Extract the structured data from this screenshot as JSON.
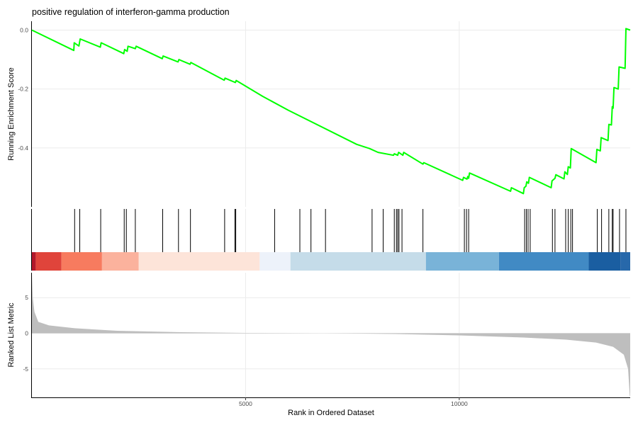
{
  "chart_data": {
    "type": "line",
    "title": "positive regulation of interferon-gamma production",
    "xlabel": "Rank in Ordered Dataset",
    "xlim": [
      0,
      14000
    ],
    "x_ticks": [
      5000,
      10000
    ],
    "x_tick_labels": [
      "5000",
      "10000"
    ],
    "grid": true,
    "color_line": "#00ff00",
    "enrichment": {
      "ylabel": "Running Enrichment Score",
      "ylim": [
        -0.6,
        0.03
      ],
      "y_ticks": [
        0.0,
        -0.2,
        -0.4
      ],
      "y_tick_labels": [
        "0.0",
        "-0.2",
        "-0.4"
      ],
      "points": [
        [
          0,
          0
        ],
        [
          980,
          -0.069
        ],
        [
          990,
          -0.043
        ],
        [
          1100,
          -0.054
        ],
        [
          1130,
          -0.03
        ],
        [
          1600,
          -0.058
        ],
        [
          1620,
          -0.043
        ],
        [
          2150,
          -0.08
        ],
        [
          2170,
          -0.066
        ],
        [
          2230,
          -0.072
        ],
        [
          2250,
          -0.055
        ],
        [
          2420,
          -0.063
        ],
        [
          2440,
          -0.055
        ],
        [
          3050,
          -0.097
        ],
        [
          3070,
          -0.088
        ],
        [
          3420,
          -0.108
        ],
        [
          3440,
          -0.1
        ],
        [
          3700,
          -0.116
        ],
        [
          3720,
          -0.11
        ],
        [
          4500,
          -0.17
        ],
        [
          4520,
          -0.163
        ],
        [
          4760,
          -0.178
        ],
        [
          4780,
          -0.171
        ],
        [
          5400,
          -0.225
        ],
        [
          6000,
          -0.272
        ],
        [
          7600,
          -0.388
        ],
        [
          7900,
          -0.402
        ],
        [
          8100,
          -0.415
        ],
        [
          8460,
          -0.425
        ],
        [
          8480,
          -0.42
        ],
        [
          8560,
          -0.425
        ],
        [
          8580,
          -0.415
        ],
        [
          8680,
          -0.425
        ],
        [
          8700,
          -0.415
        ],
        [
          9150,
          -0.455
        ],
        [
          9170,
          -0.45
        ],
        [
          10080,
          -0.51
        ],
        [
          10100,
          -0.5
        ],
        [
          10180,
          -0.506
        ],
        [
          10200,
          -0.497
        ],
        [
          10220,
          -0.503
        ],
        [
          10240,
          -0.485
        ],
        [
          11200,
          -0.547
        ],
        [
          11220,
          -0.535
        ],
        [
          11500,
          -0.555
        ],
        [
          11520,
          -0.535
        ],
        [
          11560,
          -0.53
        ],
        [
          11580,
          -0.515
        ],
        [
          11620,
          -0.52
        ],
        [
          11640,
          -0.5
        ],
        [
          12150,
          -0.535
        ],
        [
          12170,
          -0.512
        ],
        [
          12240,
          -0.503
        ],
        [
          12260,
          -0.491
        ],
        [
          12450,
          -0.505
        ],
        [
          12470,
          -0.481
        ],
        [
          12530,
          -0.49
        ],
        [
          12550,
          -0.464
        ],
        [
          12600,
          -0.468
        ],
        [
          12620,
          -0.402
        ],
        [
          13200,
          -0.45
        ],
        [
          13220,
          -0.405
        ],
        [
          13300,
          -0.41
        ],
        [
          13320,
          -0.365
        ],
        [
          13480,
          -0.375
        ],
        [
          13500,
          -0.32
        ],
        [
          13560,
          -0.322
        ],
        [
          13580,
          -0.26
        ],
        [
          13600,
          -0.265
        ],
        [
          13620,
          -0.195
        ],
        [
          13720,
          -0.2
        ],
        [
          13740,
          -0.125
        ],
        [
          13880,
          -0.13
        ],
        [
          13900,
          0.005
        ],
        [
          14000,
          0
        ]
      ]
    },
    "hits": [
      1000,
      1120,
      1610,
      2160,
      2210,
      2420,
      3060,
      3430,
      3710,
      4510,
      4750,
      4770,
      5680,
      6270,
      6530,
      6870,
      7960,
      8220,
      8480,
      8530,
      8560,
      8590,
      8660,
      9150,
      10120,
      10170,
      10220,
      11530,
      11570,
      11610,
      11660,
      12180,
      12240,
      12490,
      12550,
      12610,
      12650,
      13230,
      13330,
      13500,
      13580,
      13600,
      13750,
      13900
    ],
    "color_bar": {
      "segments": [
        {
          "x0": 0,
          "x1": 90,
          "color": "#b2182b"
        },
        {
          "x0": 90,
          "x1": 690,
          "color": "#e0443b"
        },
        {
          "x0": 690,
          "x1": 1640,
          "color": "#f77b5f"
        },
        {
          "x0": 1640,
          "x1": 2500,
          "color": "#fbb29d"
        },
        {
          "x0": 2500,
          "x1": 5330,
          "color": "#fde4d9"
        },
        {
          "x0": 5330,
          "x1": 6050,
          "color": "#edf2fa"
        },
        {
          "x0": 6050,
          "x1": 9220,
          "color": "#c5dce9"
        },
        {
          "x0": 9220,
          "x1": 10930,
          "color": "#79b3d8"
        },
        {
          "x0": 10930,
          "x1": 13030,
          "color": "#418ac4"
        },
        {
          "x0": 13030,
          "x1": 13780,
          "color": "#1a5ea1"
        },
        {
          "x0": 13780,
          "x1": 14000,
          "color": "#2768aa"
        }
      ]
    },
    "ranked": {
      "ylabel": "Ranked List Metric",
      "ylim": [
        -9.0,
        8.5
      ],
      "y_ticks": [
        5,
        0,
        -5
      ],
      "y_tick_labels": [
        "5",
        "0",
        "-5"
      ],
      "fill_color": "#bebebe",
      "points": [
        [
          0,
          8.3
        ],
        [
          20,
          5
        ],
        [
          60,
          3
        ],
        [
          150,
          1.6
        ],
        [
          400,
          1.1
        ],
        [
          1000,
          0.7
        ],
        [
          2000,
          0.35
        ],
        [
          3500,
          0.15
        ],
        [
          5000,
          0.05
        ],
        [
          6800,
          0
        ],
        [
          8500,
          -0.1
        ],
        [
          10000,
          -0.3
        ],
        [
          11500,
          -0.6
        ],
        [
          12500,
          -0.9
        ],
        [
          13200,
          -1.3
        ],
        [
          13600,
          -1.9
        ],
        [
          13850,
          -3
        ],
        [
          13950,
          -5
        ],
        [
          13990,
          -8.8
        ],
        [
          14000,
          -8.8
        ]
      ]
    }
  }
}
